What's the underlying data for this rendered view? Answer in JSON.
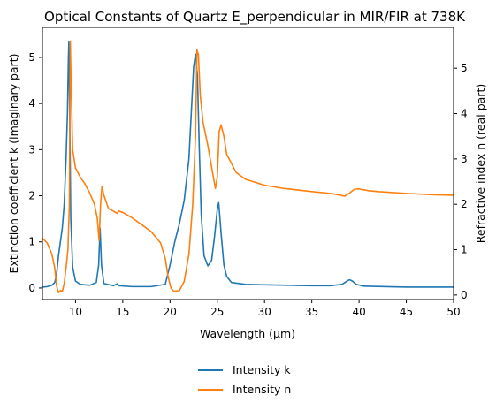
{
  "chart_data": {
    "type": "line",
    "title": "Optical Constants of Quartz E_perpendicular in MIR/FIR at 738K",
    "xlabel": "Wavelength (μm)",
    "ylabel_left": "Extinction coefficient k (imaginary part)",
    "ylabel_right": "Refractive index n (real part)",
    "xlim": [
      6.5,
      50
    ],
    "ylim_left": [
      -0.25,
      5.65
    ],
    "ylim_right": [
      -0.1,
      5.9
    ],
    "xticks": [
      10,
      15,
      20,
      25,
      30,
      35,
      40,
      45,
      50
    ],
    "yticks_left": [
      0,
      1,
      2,
      3,
      4,
      5
    ],
    "yticks_right": [
      0,
      1,
      2,
      3,
      4,
      5
    ],
    "legend_position": "below-center",
    "series": [
      {
        "name": "Intensity k",
        "axis": "left",
        "color": "#1f77b4",
        "points": [
          [
            6.5,
            0.02
          ],
          [
            7.0,
            0.03
          ],
          [
            7.5,
            0.06
          ],
          [
            7.8,
            0.12
          ],
          [
            8.0,
            0.3
          ],
          [
            8.2,
            0.7
          ],
          [
            8.4,
            1.0
          ],
          [
            8.6,
            1.3
          ],
          [
            8.8,
            1.8
          ],
          [
            9.0,
            2.8
          ],
          [
            9.15,
            3.8
          ],
          [
            9.25,
            5.0
          ],
          [
            9.3,
            5.35
          ],
          [
            9.4,
            3.5
          ],
          [
            9.5,
            1.5
          ],
          [
            9.7,
            0.45
          ],
          [
            10.0,
            0.15
          ],
          [
            10.5,
            0.08
          ],
          [
            11.5,
            0.06
          ],
          [
            12.2,
            0.12
          ],
          [
            12.45,
            0.5
          ],
          [
            12.6,
            1.3
          ],
          [
            12.75,
            0.5
          ],
          [
            13.0,
            0.1
          ],
          [
            14.0,
            0.05
          ],
          [
            14.4,
            0.09
          ],
          [
            14.6,
            0.05
          ],
          [
            16.0,
            0.03
          ],
          [
            18.0,
            0.03
          ],
          [
            19.5,
            0.08
          ],
          [
            20.0,
            0.5
          ],
          [
            20.5,
            1.0
          ],
          [
            21.0,
            1.4
          ],
          [
            21.5,
            1.9
          ],
          [
            22.0,
            2.8
          ],
          [
            22.3,
            4.0
          ],
          [
            22.5,
            4.8
          ],
          [
            22.7,
            5.07
          ],
          [
            22.9,
            4.6
          ],
          [
            23.1,
            3.0
          ],
          [
            23.3,
            1.6
          ],
          [
            23.6,
            0.7
          ],
          [
            24.0,
            0.48
          ],
          [
            24.4,
            0.6
          ],
          [
            24.7,
            1.1
          ],
          [
            25.0,
            1.7
          ],
          [
            25.15,
            1.85
          ],
          [
            25.4,
            1.2
          ],
          [
            25.7,
            0.5
          ],
          [
            26.0,
            0.25
          ],
          [
            26.5,
            0.12
          ],
          [
            28.0,
            0.08
          ],
          [
            30.0,
            0.07
          ],
          [
            35.0,
            0.05
          ],
          [
            37.0,
            0.05
          ],
          [
            38.2,
            0.08
          ],
          [
            38.8,
            0.16
          ],
          [
            39.0,
            0.18
          ],
          [
            39.3,
            0.15
          ],
          [
            39.7,
            0.08
          ],
          [
            40.5,
            0.04
          ],
          [
            45.0,
            0.02
          ],
          [
            50.0,
            0.02
          ]
        ]
      },
      {
        "name": "Intensity n",
        "axis": "right",
        "color": "#ff7f0e",
        "points": [
          [
            6.5,
            1.25
          ],
          [
            7.0,
            1.15
          ],
          [
            7.5,
            0.9
          ],
          [
            7.8,
            0.6
          ],
          [
            8.0,
            0.2
          ],
          [
            8.2,
            0.05
          ],
          [
            8.4,
            0.1
          ],
          [
            8.6,
            0.08
          ],
          [
            8.8,
            0.25
          ],
          [
            9.0,
            0.6
          ],
          [
            9.2,
            1.0
          ],
          [
            9.35,
            2.0
          ],
          [
            9.45,
            5.6
          ],
          [
            9.55,
            4.5
          ],
          [
            9.7,
            3.2
          ],
          [
            10.0,
            2.8
          ],
          [
            10.5,
            2.6
          ],
          [
            11.0,
            2.45
          ],
          [
            11.5,
            2.25
          ],
          [
            12.0,
            2.0
          ],
          [
            12.3,
            1.7
          ],
          [
            12.5,
            1.2
          ],
          [
            12.65,
            2.0
          ],
          [
            12.8,
            2.4
          ],
          [
            13.0,
            2.2
          ],
          [
            13.5,
            1.9
          ],
          [
            14.0,
            1.85
          ],
          [
            14.4,
            1.8
          ],
          [
            14.6,
            1.85
          ],
          [
            15.0,
            1.82
          ],
          [
            16.0,
            1.7
          ],
          [
            17.0,
            1.55
          ],
          [
            18.0,
            1.4
          ],
          [
            19.0,
            1.15
          ],
          [
            19.5,
            0.8
          ],
          [
            19.8,
            0.4
          ],
          [
            20.1,
            0.15
          ],
          [
            20.4,
            0.08
          ],
          [
            21.0,
            0.1
          ],
          [
            21.5,
            0.3
          ],
          [
            22.0,
            0.9
          ],
          [
            22.4,
            2.0
          ],
          [
            22.7,
            3.5
          ],
          [
            22.85,
            5.4
          ],
          [
            23.0,
            5.3
          ],
          [
            23.2,
            4.4
          ],
          [
            23.5,
            3.8
          ],
          [
            24.0,
            3.3
          ],
          [
            24.5,
            2.7
          ],
          [
            24.8,
            2.35
          ],
          [
            25.0,
            2.6
          ],
          [
            25.2,
            3.6
          ],
          [
            25.4,
            3.75
          ],
          [
            25.7,
            3.5
          ],
          [
            26.0,
            3.1
          ],
          [
            27.0,
            2.7
          ],
          [
            28.0,
            2.55
          ],
          [
            30.0,
            2.42
          ],
          [
            32.0,
            2.35
          ],
          [
            35.0,
            2.28
          ],
          [
            37.0,
            2.24
          ],
          [
            38.0,
            2.2
          ],
          [
            38.5,
            2.18
          ],
          [
            39.0,
            2.25
          ],
          [
            39.5,
            2.33
          ],
          [
            40.0,
            2.34
          ],
          [
            41.0,
            2.3
          ],
          [
            42.0,
            2.28
          ],
          [
            45.0,
            2.24
          ],
          [
            48.0,
            2.21
          ],
          [
            50.0,
            2.2
          ]
        ]
      }
    ]
  }
}
